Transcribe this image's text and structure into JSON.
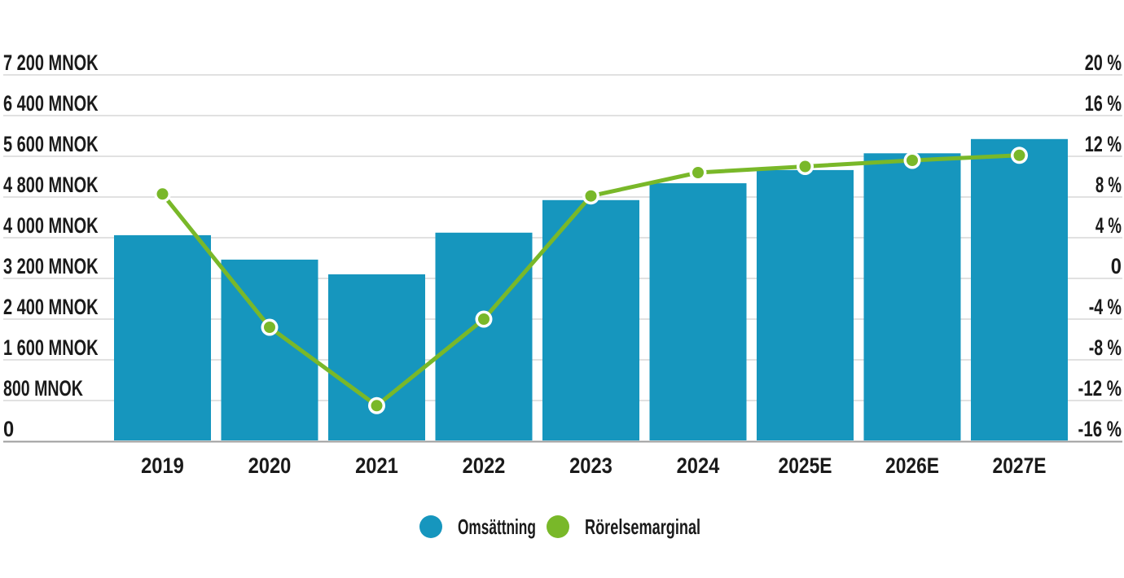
{
  "chart_data": {
    "type": "bar+line",
    "title": "",
    "categories": [
      "2019",
      "2020",
      "2021",
      "2022",
      "2023",
      "2024",
      "2025E",
      "2026E",
      "2027E"
    ],
    "series": [
      {
        "name": "Omsättning",
        "chart_type": "bar",
        "axis": "left",
        "unit": "MNOK",
        "color": "#1696be",
        "values": [
          4050,
          3570,
          3280,
          4100,
          4740,
          5070,
          5330,
          5660,
          5940
        ]
      },
      {
        "name": "Rörelsemarginal",
        "chart_type": "line",
        "axis": "right",
        "unit": "%",
        "color": "#79b829",
        "values": [
          8.3,
          -4.8,
          -12.5,
          -4.0,
          8.1,
          10.4,
          11.0,
          11.6,
          12.1
        ]
      }
    ],
    "left_axis": {
      "unit": "MNOK",
      "range": [
        0,
        7200
      ],
      "tick_step": 800,
      "ticks": [
        {
          "value": 7200,
          "label": "7 200 MNOK"
        },
        {
          "value": 6400,
          "label": "6 400 MNOK"
        },
        {
          "value": 5600,
          "label": "5 600 MNOK"
        },
        {
          "value": 4800,
          "label": "4 800 MNOK"
        },
        {
          "value": 4000,
          "label": "4 000 MNOK"
        },
        {
          "value": 3200,
          "label": "3 200 MNOK"
        },
        {
          "value": 2400,
          "label": "2 400 MNOK"
        },
        {
          "value": 1600,
          "label": "1 600 MNOK"
        },
        {
          "value": 800,
          "label": "800 MNOK"
        },
        {
          "value": 0,
          "label": "0"
        }
      ]
    },
    "right_axis": {
      "unit": "%",
      "range": [
        -16,
        20
      ],
      "tick_step": 4,
      "ticks": [
        {
          "value": 20,
          "label": "20 %"
        },
        {
          "value": 16,
          "label": "16 %"
        },
        {
          "value": 12,
          "label": "12 %"
        },
        {
          "value": 8,
          "label": "8 %"
        },
        {
          "value": 4,
          "label": "4 %"
        },
        {
          "value": 0,
          "label": "0"
        },
        {
          "value": -4,
          "label": "-4 %"
        },
        {
          "value": -8,
          "label": "-8 %"
        },
        {
          "value": -12,
          "label": "-12 %"
        },
        {
          "value": -16,
          "label": "-16 %"
        }
      ]
    },
    "grid": true,
    "legend_position": "bottom"
  },
  "legend": {
    "items": [
      {
        "label": "Omsättning",
        "color": "#1696be",
        "marker": "circle"
      },
      {
        "label": "Rörelsemarginal",
        "color": "#79b829",
        "marker": "circle"
      }
    ]
  },
  "colors": {
    "bar": "#1696be",
    "line": "#79b829",
    "grid": "#d7d7d7",
    "baseline": "#9e9e9e",
    "text": "#1a1a1a",
    "background": "#ffffff"
  }
}
